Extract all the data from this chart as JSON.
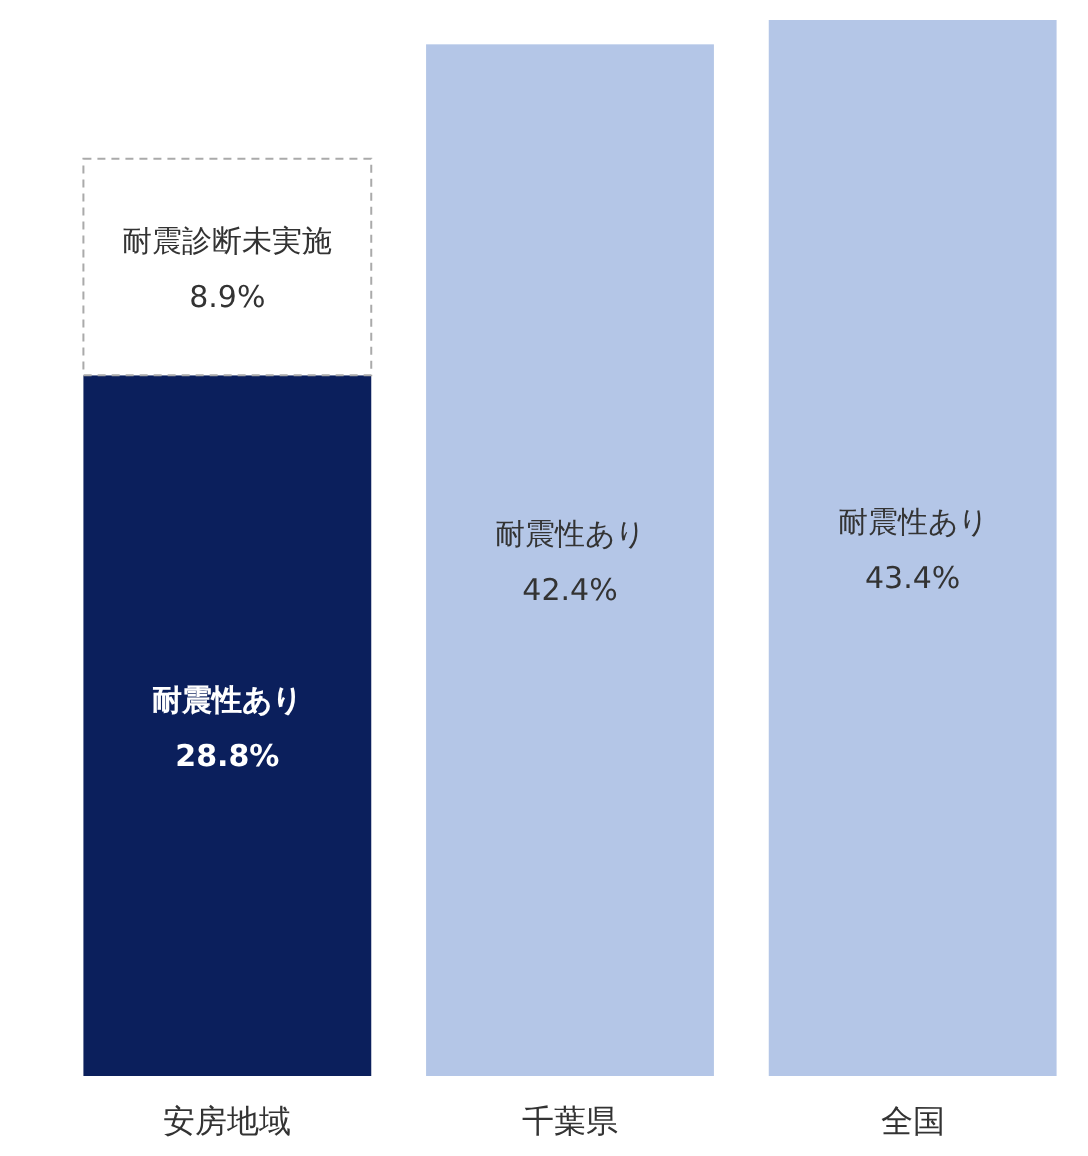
{
  "chart_data": {
    "type": "bar",
    "stacked": true,
    "categories": [
      "安房地域",
      "千葉県",
      "全国"
    ],
    "series": [
      {
        "name": "耐震性あり",
        "colors": [
          "#0b1f5c",
          "#b4c6e7",
          "#b4c6e7"
        ],
        "values": [
          28.8,
          42.4,
          43.4
        ],
        "value_labels": [
          "28.8%",
          "42.4%",
          "43.4%"
        ]
      },
      {
        "name": "耐震診断未実施",
        "color": "#ffffff",
        "line_style": "dashed",
        "values": [
          8.9,
          null,
          null
        ],
        "value_labels": [
          "8.9%",
          null,
          null
        ]
      }
    ]
  }
}
